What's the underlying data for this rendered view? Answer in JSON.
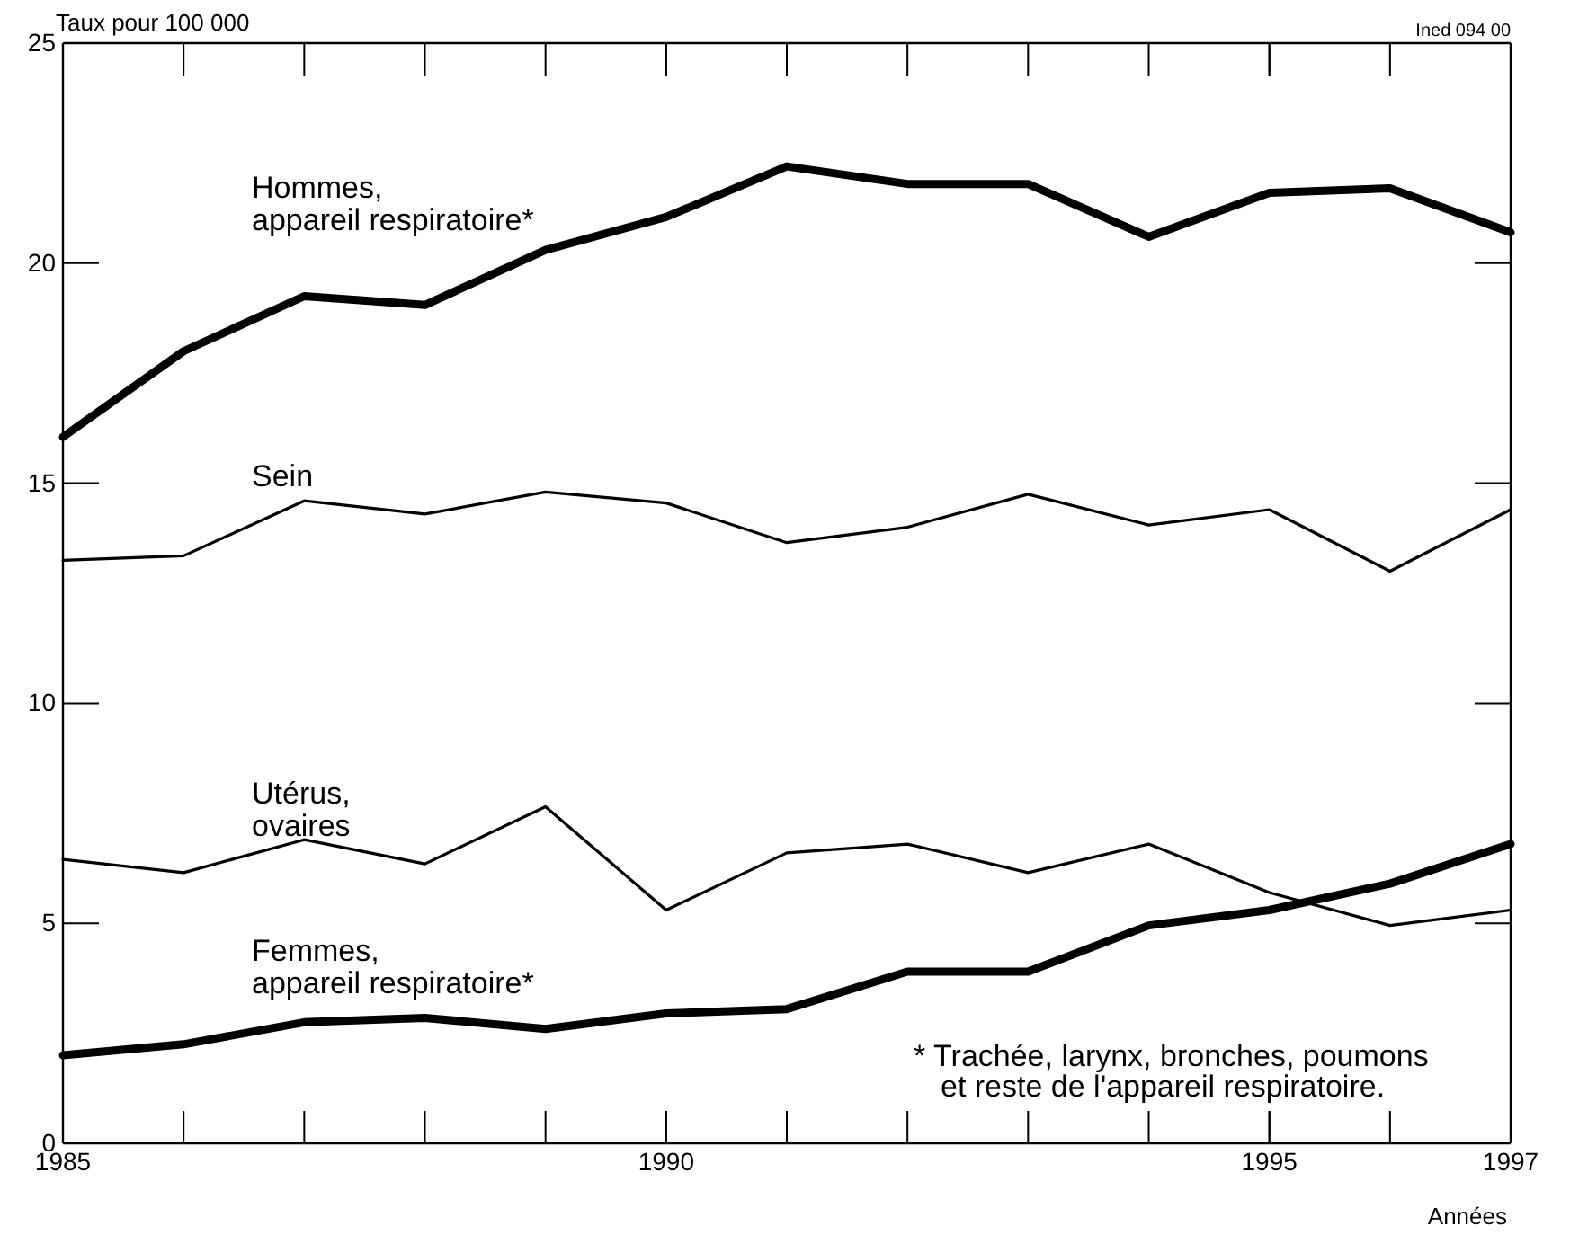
{
  "chart_data": {
    "type": "line",
    "ylabel": "Taux pour 100 000",
    "xlabel": "Années",
    "annotations": [
      "Ined 094 00",
      "* Trachée, larynx, bronches, poumons\net reste de l'appareil respiratoire."
    ],
    "x": [
      1985,
      1986,
      1987,
      1988,
      1989,
      1990,
      1991,
      1992,
      1993,
      1994,
      1995,
      1996,
      1997
    ],
    "series": [
      {
        "name": "Hommes, appareil respiratoire*",
        "color": "#000000",
        "values": [
          16.05,
          18.0,
          19.25,
          19.05,
          20.3,
          21.05,
          22.2,
          21.8,
          21.8,
          20.6,
          21.6,
          21.7,
          20.7
        ]
      },
      {
        "name": "Sein",
        "color": "#000000",
        "values": [
          13.25,
          13.35,
          14.6,
          14.3,
          14.8,
          14.55,
          13.65,
          14.0,
          14.75,
          14.05,
          14.4,
          13.0,
          14.4
        ]
      },
      {
        "name": "Utérus, ovaires",
        "color": "#000000",
        "values": [
          6.45,
          6.15,
          6.9,
          6.35,
          7.65,
          5.3,
          6.6,
          6.8,
          6.15,
          6.8,
          5.7,
          4.95,
          5.3
        ]
      },
      {
        "name": "Femmes, appareil respiratoire*",
        "color": "#000000",
        "values": [
          2.0,
          2.25,
          2.75,
          2.85,
          2.6,
          2.95,
          3.05,
          3.9,
          3.9,
          4.95,
          5.3,
          5.9,
          6.8
        ]
      }
    ],
    "xlim": [
      1985,
      1997
    ],
    "xticks": [
      1985,
      1990,
      1995,
      1997
    ],
    "ylim": [
      0,
      25
    ],
    "yticks": [
      0,
      5,
      10,
      15,
      20,
      25
    ],
    "grid": false,
    "line_style": "solid"
  }
}
